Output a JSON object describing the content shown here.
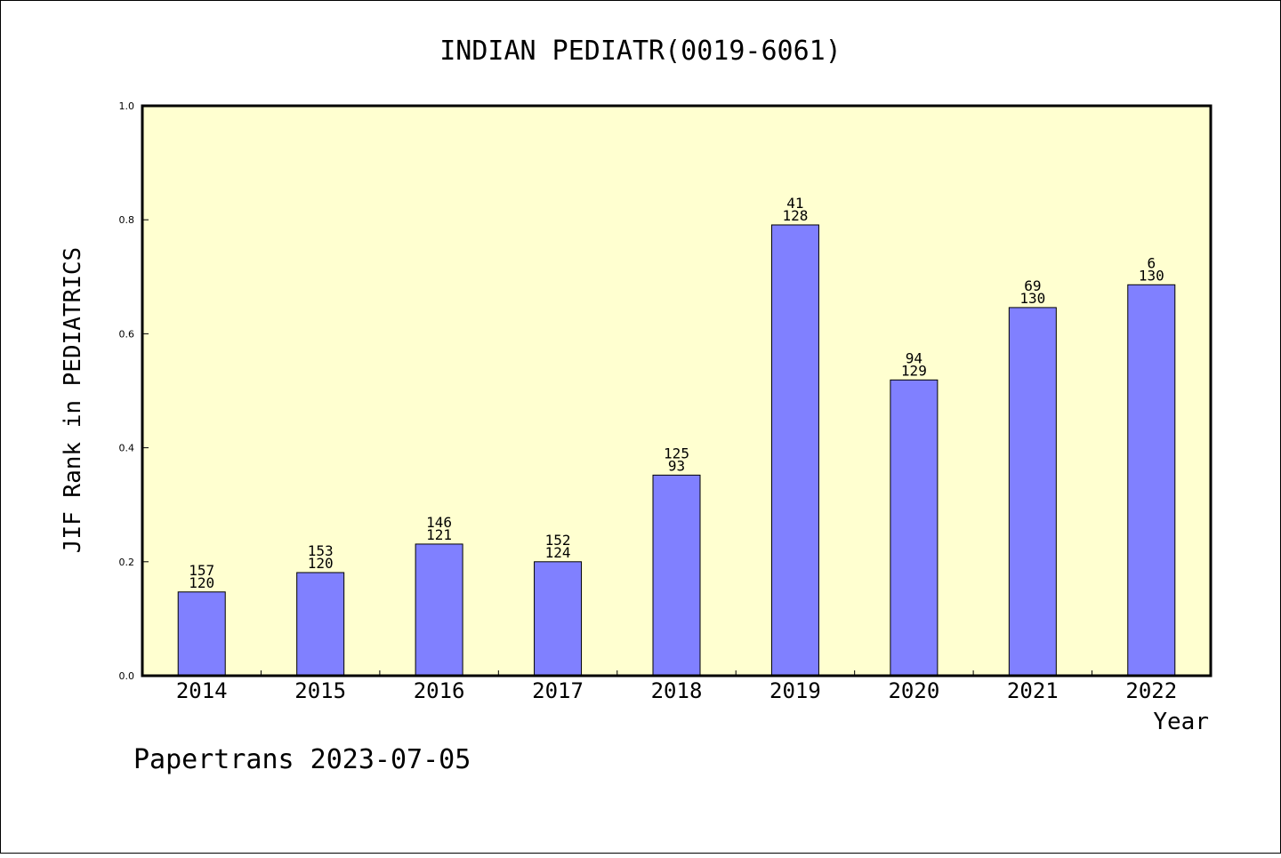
{
  "chart_data": {
    "type": "bar",
    "title": "INDIAN PEDIATR(0019-6061)",
    "xlabel": "Year",
    "ylabel": "JIF Rank in PEDIATRICS",
    "ylim": [
      0,
      1.0
    ],
    "yticks": [
      "0.0",
      "0.2",
      "0.4",
      "0.6",
      "0.8",
      "1.0"
    ],
    "grid": false,
    "categories": [
      "2014",
      "2015",
      "2016",
      "2017",
      "2018",
      "2019",
      "2020",
      "2021",
      "2022"
    ],
    "values": [
      0.147,
      0.181,
      0.231,
      0.2,
      0.352,
      0.791,
      0.519,
      0.646,
      0.686
    ],
    "rank_labels": [
      "157",
      "153",
      "146",
      "152",
      "125",
      "41",
      "94",
      "69",
      "6"
    ],
    "total_labels": [
      "120",
      "120",
      "121",
      "124",
      "93",
      "128",
      "129",
      "130",
      "130"
    ],
    "colors": {
      "plot_background": "#ffffd0",
      "bar_fill": "#8080ff",
      "bar_stroke": "#000000"
    }
  },
  "footer": "Papertrans 2023-07-05"
}
